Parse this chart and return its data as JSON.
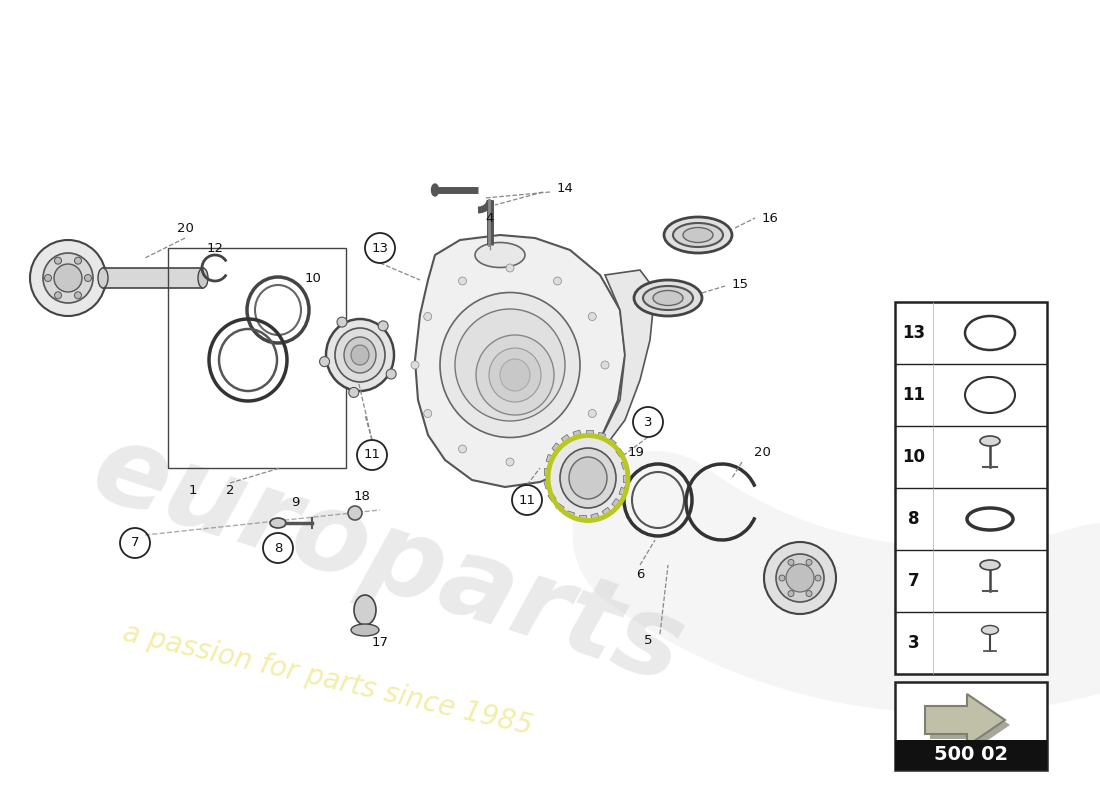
{
  "bg_color": "#ffffff",
  "page_code": "500 02",
  "legend_items": [
    {
      "num": "13",
      "shape": "oval_thin"
    },
    {
      "num": "11",
      "shape": "oval_medium"
    },
    {
      "num": "10",
      "shape": "bolt"
    },
    {
      "num": "8",
      "shape": "ring"
    },
    {
      "num": "7",
      "shape": "bolt"
    },
    {
      "num": "3",
      "shape": "bolt_small"
    }
  ],
  "watermark1": "europarts",
  "watermark2": "a passion for parts since 1985"
}
